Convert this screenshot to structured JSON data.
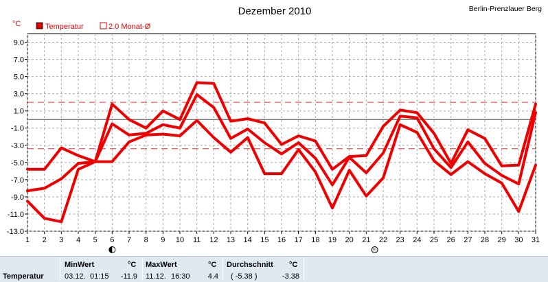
{
  "header": {
    "title": "Dezember 2010",
    "station": "Berlin-Prenzlauer Berg",
    "unit": "°C"
  },
  "legend": [
    {
      "label": "Temperatur",
      "style": "filled",
      "color": "#dd0000"
    },
    {
      "label": "2.0 Monat-Ø",
      "style": "outline",
      "color": "#dd0000"
    }
  ],
  "colors": {
    "series": "#ee0000",
    "reference": "#dd3333",
    "zero_line": "#777777",
    "grid": "#aaaaaa"
  },
  "chart_data": {
    "type": "line",
    "title": "Dezember 2010",
    "ylabel": "°C",
    "xlim": [
      1,
      31
    ],
    "ylim": [
      -13,
      10
    ],
    "x_ticks": [
      1,
      2,
      3,
      4,
      5,
      6,
      7,
      8,
      9,
      10,
      11,
      12,
      13,
      14,
      15,
      16,
      17,
      18,
      19,
      20,
      21,
      22,
      23,
      24,
      25,
      26,
      27,
      28,
      29,
      30,
      31
    ],
    "y_ticks": [
      9.0,
      7.0,
      5.0,
      3.0,
      1.0,
      -1.0,
      -3.0,
      -5.0,
      -7.0,
      -9.0,
      -11.0,
      -13.0
    ],
    "y_ticks_labels": [
      "9.0",
      "7.0",
      "5.0",
      "3.0",
      "1.0",
      "-1.0",
      "-3.0",
      "-5.0",
      "-7.0",
      "-9.0",
      "-11.0",
      "-13.0"
    ],
    "grid": true,
    "legend_position": "top-left",
    "x": [
      1,
      2,
      3,
      4,
      5,
      6,
      7,
      8,
      9,
      10,
      11,
      12,
      13,
      14,
      15,
      16,
      17,
      18,
      19,
      20,
      21,
      22,
      23,
      24,
      25,
      26,
      27,
      28,
      29,
      30,
      31
    ],
    "series": [
      {
        "values": [
          -5.8,
          -5.8,
          -3.3,
          -4.2,
          -4.9,
          1.8,
          0.0,
          -1.0,
          1.0,
          0.0,
          4.3,
          4.2,
          -0.2,
          0.1,
          -0.4,
          -2.9,
          -1.9,
          -2.5,
          -5.8,
          -4.3,
          -4.2,
          -0.8,
          1.1,
          0.8,
          -1.6,
          -5.1,
          -1.2,
          -2.2,
          -5.4,
          -5.3,
          1.8
        ]
      },
      {
        "values": [
          -8.3,
          -8.0,
          -6.9,
          -5.1,
          -4.9,
          -0.5,
          -1.8,
          -1.6,
          -0.6,
          -1.0,
          2.9,
          1.4,
          -2.2,
          -1.1,
          -2.7,
          -4.0,
          -2.7,
          -4.5,
          -7.6,
          -4.4,
          -6.2,
          -3.9,
          0.4,
          0.2,
          -3.4,
          -5.6,
          -2.6,
          -5.1,
          -6.5,
          -7.5,
          0.8
        ]
      },
      {
        "values": [
          -9.5,
          -11.5,
          -11.9,
          -5.8,
          -4.9,
          -4.9,
          -2.6,
          -1.8,
          -1.7,
          -1.9,
          -0.1,
          -2.1,
          -3.8,
          -2.1,
          -6.3,
          -6.3,
          -3.5,
          -6.1,
          -10.3,
          -5.9,
          -8.9,
          -6.8,
          -0.6,
          -1.5,
          -4.8,
          -6.4,
          -4.9,
          -6.3,
          -7.4,
          -10.7,
          -5.3
        ]
      }
    ],
    "reference_lines": [
      2.0,
      -3.4
    ],
    "zero_line": 0,
    "markers": [
      {
        "x": 6,
        "icon": "new-moon-icon"
      },
      {
        "x": 21.5,
        "icon": "full-moon-icon"
      }
    ]
  },
  "footer": {
    "row_label": "Temperatur",
    "min": {
      "header": "MinWert",
      "unit": "°C",
      "date": "03.12.",
      "time": "01:15",
      "value": "-11.9"
    },
    "max": {
      "header": "MaxWert",
      "unit": "°C",
      "date": "11.12.",
      "time": "16:30",
      "value": "4.4"
    },
    "avg": {
      "header": "Durchschnitt",
      "unit": "°C",
      "paren": "( -5.38 )",
      "value": "-3.38"
    }
  }
}
